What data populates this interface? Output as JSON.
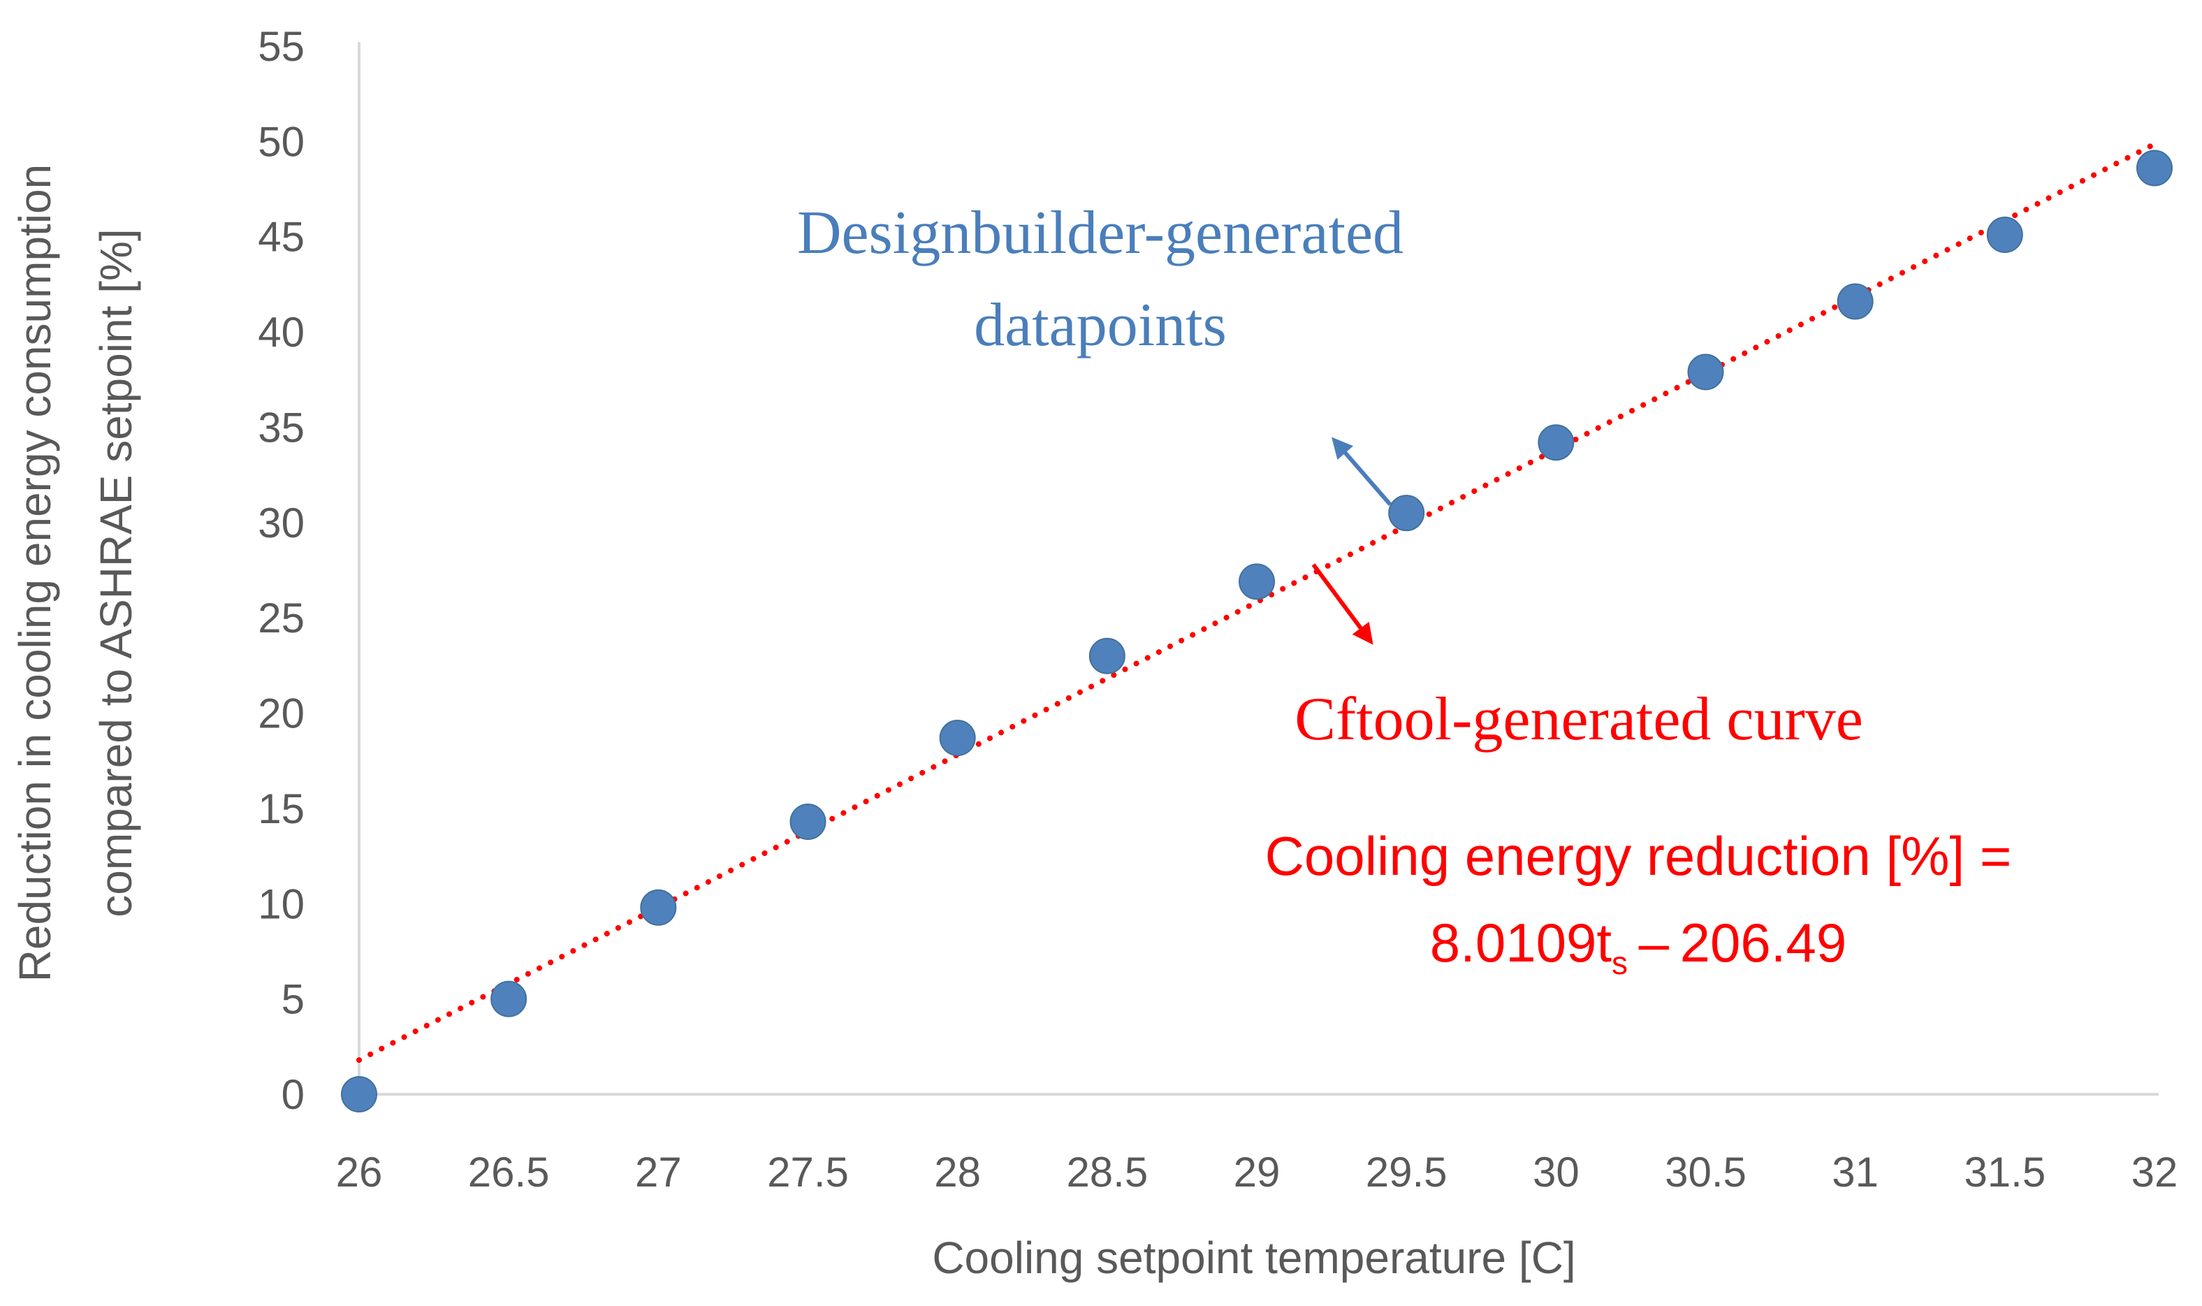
{
  "chart_data": {
    "type": "scatter",
    "title": "",
    "xlabel": "Cooling setpoint temperature [C]",
    "ylabel_line1": "Reduction in cooling energy consumption",
    "ylabel_line2": "compared to ASHRAE setpoint [%]",
    "xlim": [
      26,
      32
    ],
    "ylim": [
      0,
      55
    ],
    "xticks": [
      26,
      26.5,
      27,
      27.5,
      28,
      28.5,
      29,
      29.5,
      30,
      30.5,
      31,
      31.5,
      32
    ],
    "xtick_labels": [
      "26",
      "26.5",
      "27",
      "27.5",
      "28",
      "28.5",
      "29",
      "29.5",
      "30",
      "30.5",
      "31",
      "31.5",
      "32"
    ],
    "yticks": [
      0,
      5,
      10,
      15,
      20,
      25,
      30,
      35,
      40,
      45,
      50,
      55
    ],
    "ytick_labels": [
      "0",
      "5",
      "10",
      "15",
      "20",
      "25",
      "30",
      "35",
      "40",
      "45",
      "50",
      "55"
    ],
    "grid": false,
    "series": [
      {
        "name": "Designbuilder-generated datapoints",
        "kind": "scatter",
        "color": "#4f81bd",
        "x": [
          26,
          26.5,
          27,
          27.5,
          28,
          28.5,
          29,
          29.5,
          30,
          30.5,
          31,
          31.5,
          32
        ],
        "y": [
          0,
          5.0,
          9.8,
          14.3,
          18.7,
          23.0,
          26.9,
          30.5,
          34.2,
          37.9,
          41.6,
          45.1,
          48.6
        ]
      },
      {
        "name": "Cftool-generated curve",
        "kind": "line",
        "style": "dotted",
        "color": "#ff0000",
        "slope": 8.0109,
        "intercept": -206.49,
        "x": [
          26,
          32
        ]
      }
    ],
    "annotations": {
      "blue_label_line1": "Designbuilder-generated",
      "blue_label_line2": "datapoints",
      "red_label": "Cftool-generated curve",
      "equation_line1": "Cooling energy reduction [%] =",
      "equation_coef": "8.0109t",
      "equation_sub": "s",
      "equation_rest": " – 206.49",
      "blue_color": "#4a7ebb",
      "red_color": "#ff0000"
    }
  }
}
